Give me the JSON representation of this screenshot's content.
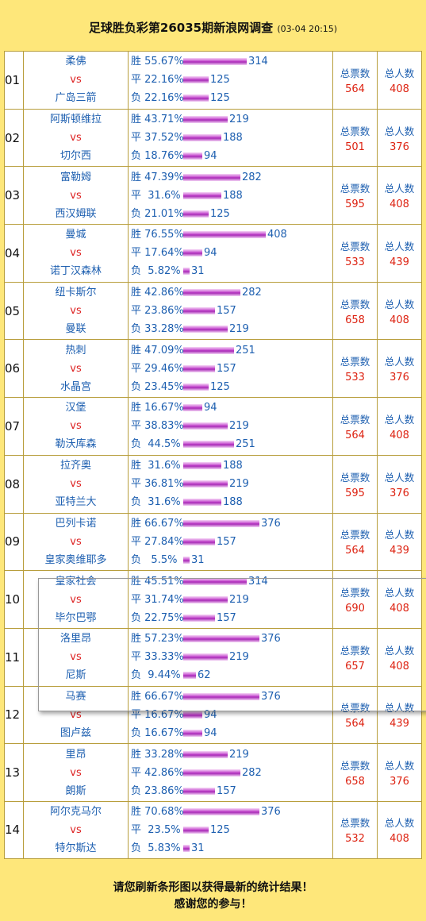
{
  "header": {
    "title": "足球胜负彩第26035期新浪网调查",
    "timestamp": "(03-04 20:15)"
  },
  "labels": {
    "win": "胜",
    "draw": "平",
    "lose": "负",
    "vs": "vs",
    "total_votes": "总票数",
    "total_people": "总人数"
  },
  "matches": [
    {
      "num": "01",
      "home": "柔佛",
      "away": "广岛三箭",
      "win_pct": "55.67%",
      "win": 314,
      "draw_pct": "22.16%",
      "draw": 125,
      "lose_pct": "22.16%",
      "lose": 125,
      "votes": "564",
      "people": "408"
    },
    {
      "num": "02",
      "home": "阿斯顿维拉",
      "away": "切尔西",
      "win_pct": "43.71%",
      "win": 219,
      "draw_pct": "37.52%",
      "draw": 188,
      "lose_pct": "18.76%",
      "lose": 94,
      "votes": "501",
      "people": "376"
    },
    {
      "num": "03",
      "home": "富勒姆",
      "away": "西汉姆联",
      "win_pct": "47.39%",
      "win": 282,
      "draw_pct": " 31.6%",
      "draw": 188,
      "lose_pct": "21.01%",
      "lose": 125,
      "votes": "595",
      "people": "408"
    },
    {
      "num": "04",
      "home": "曼城",
      "away": "诺丁汉森林",
      "win_pct": "76.55%",
      "win": 408,
      "draw_pct": "17.64%",
      "draw": 94,
      "lose_pct": " 5.82%",
      "lose": 31,
      "votes": "533",
      "people": "439"
    },
    {
      "num": "05",
      "home": "纽卡斯尔",
      "away": "曼联",
      "win_pct": "42.86%",
      "win": 282,
      "draw_pct": "23.86%",
      "draw": 157,
      "lose_pct": "33.28%",
      "lose": 219,
      "votes": "658",
      "people": "408"
    },
    {
      "num": "06",
      "home": "热刺",
      "away": "水晶宫",
      "win_pct": "47.09%",
      "win": 251,
      "draw_pct": "29.46%",
      "draw": 157,
      "lose_pct": "23.45%",
      "lose": 125,
      "votes": "533",
      "people": "376"
    },
    {
      "num": "07",
      "home": "汉堡",
      "away": "勒沃库森",
      "win_pct": "16.67%",
      "win": 94,
      "draw_pct": "38.83%",
      "draw": 219,
      "lose_pct": " 44.5%",
      "lose": 251,
      "votes": "564",
      "people": "408"
    },
    {
      "num": "08",
      "home": "拉齐奥",
      "away": "亚特兰大",
      "win_pct": " 31.6%",
      "win": 188,
      "draw_pct": "36.81%",
      "draw": 219,
      "lose_pct": " 31.6%",
      "lose": 188,
      "votes": "595",
      "people": "376"
    },
    {
      "num": "09",
      "home": "巴列卡诺",
      "away": "皇家奥维耶多",
      "win_pct": "66.67%",
      "win": 376,
      "draw_pct": "27.84%",
      "draw": 157,
      "lose_pct": "  5.5%",
      "lose": 31,
      "votes": "564",
      "people": "439"
    },
    {
      "num": "10",
      "home": "皇家社会",
      "away": "毕尔巴鄂",
      "win_pct": "45.51%",
      "win": 314,
      "draw_pct": "31.74%",
      "draw": 219,
      "lose_pct": "22.75%",
      "lose": 157,
      "votes": "690",
      "people": "408"
    },
    {
      "num": "11",
      "home": "洛里昂",
      "away": "尼斯",
      "win_pct": "57.23%",
      "win": 376,
      "draw_pct": "33.33%",
      "draw": 219,
      "lose_pct": " 9.44%",
      "lose": 62,
      "votes": "657",
      "people": "408"
    },
    {
      "num": "12",
      "home": "马赛",
      "away": "图卢兹",
      "win_pct": "66.67%",
      "win": 376,
      "draw_pct": "16.67%",
      "draw": 94,
      "lose_pct": "16.67%",
      "lose": 94,
      "votes": "564",
      "people": "439"
    },
    {
      "num": "13",
      "home": "里昂",
      "away": "朗斯",
      "win_pct": "33.28%",
      "win": 219,
      "draw_pct": "42.86%",
      "draw": 282,
      "lose_pct": "23.86%",
      "lose": 157,
      "votes": "658",
      "people": "376"
    },
    {
      "num": "14",
      "home": "阿尔克马尔",
      "away": "特尔斯达",
      "win_pct": "70.68%",
      "win": 376,
      "draw_pct": " 23.5%",
      "draw": 125,
      "lose_pct": " 5.83%",
      "lose": 31,
      "votes": "532",
      "people": "408"
    }
  ],
  "footer": {
    "line1": "请您刷新条形图以获得最新的统计结果！",
    "line2": "感谢您的参与！"
  },
  "colors": {
    "background": "#fee77a",
    "text_blue": "#1d5fb0",
    "text_red": "#d21",
    "bar": "#c64fcf"
  }
}
